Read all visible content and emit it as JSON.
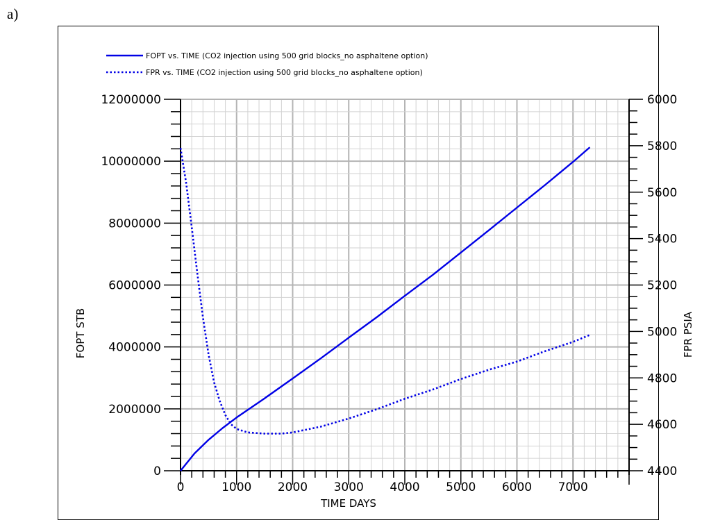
{
  "panel_label": "a)",
  "chart_data": {
    "type": "line",
    "title": "",
    "xlabel": "TIME   DAYS",
    "ylabel_left": "FOPT   STB",
    "ylabel_right": "FPR   PSIA",
    "xlim": [
      0,
      8000
    ],
    "ylim_left": [
      0,
      12000000
    ],
    "ylim_right": [
      4400,
      6000
    ],
    "x_ticks": [
      0,
      1000,
      2000,
      3000,
      4000,
      5000,
      6000,
      7000
    ],
    "y_left_ticks": [
      0,
      2000000,
      4000000,
      6000000,
      8000000,
      10000000,
      12000000
    ],
    "y_right_ticks": [
      4400,
      4600,
      4800,
      5000,
      5200,
      5400,
      5600,
      5800,
      6000
    ],
    "grid": true,
    "legend_position": "top-left",
    "series": [
      {
        "name": "FOPT vs. TIME (CO2 injection using 500 grid blocks_no asphaltene option)",
        "axis": "left",
        "style": "solid",
        "color": "#0000e6",
        "x": [
          0,
          250,
          500,
          750,
          1000,
          1500,
          2000,
          2500,
          3000,
          3500,
          4000,
          4500,
          5000,
          5500,
          6000,
          6500,
          7000,
          7300
        ],
        "y": [
          0,
          560000,
          1000000,
          1380000,
          1720000,
          2340000,
          2980000,
          3630000,
          4300000,
          4960000,
          5650000,
          6330000,
          7050000,
          7770000,
          8500000,
          9230000,
          9980000,
          10450000
        ]
      },
      {
        "name": "FPR vs. TIME (CO2 injection using 500 grid blocks_no asphaltene option)",
        "axis": "right",
        "style": "dotted",
        "color": "#0000e6",
        "x": [
          0,
          100,
          200,
          300,
          400,
          500,
          600,
          700,
          800,
          900,
          1000,
          1200,
          1500,
          1800,
          2000,
          2500,
          3000,
          3500,
          4000,
          4500,
          5000,
          5500,
          6000,
          6500,
          7000,
          7300
        ],
        "y": [
          5790,
          5640,
          5450,
          5250,
          5060,
          4900,
          4780,
          4700,
          4640,
          4600,
          4580,
          4565,
          4560,
          4560,
          4565,
          4590,
          4625,
          4665,
          4710,
          4750,
          4795,
          4835,
          4870,
          4915,
          4955,
          4985
        ]
      }
    ]
  }
}
